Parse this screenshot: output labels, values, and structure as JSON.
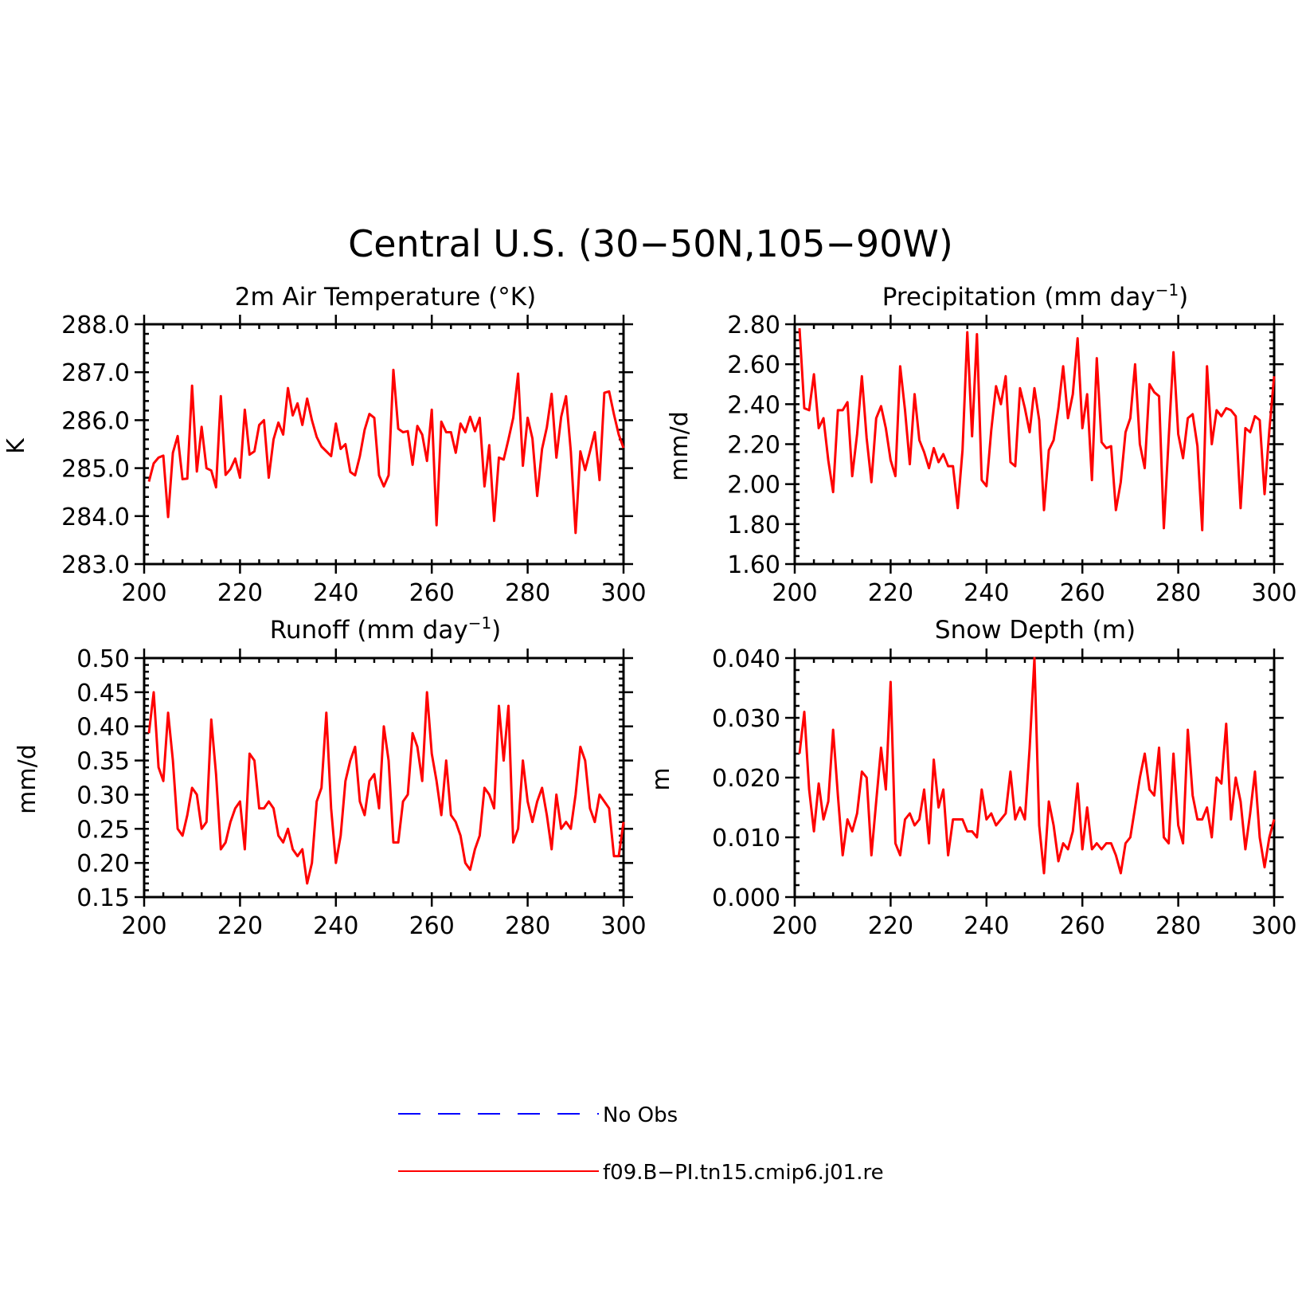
{
  "figure_title": "Central U.S. (30−50N,105−90W)",
  "legend": {
    "entries": [
      {
        "label": "No Obs",
        "color": "#0000ff",
        "dashed": true
      },
      {
        "label": "f09.B−PI.tn15.cmip6.j01.re",
        "color": "#ff0000",
        "dashed": false
      }
    ]
  },
  "chart_data": [
    {
      "type": "line",
      "title": "2m Air Temperature (°K)",
      "ylabel": "K",
      "xlim": [
        200,
        300
      ],
      "ylim": [
        283.0,
        288.0
      ],
      "xticks": [
        200,
        220,
        240,
        260,
        280,
        300
      ],
      "yticks": [
        "283.0",
        "284.0",
        "285.0",
        "286.0",
        "287.0",
        "288.0"
      ],
      "series": [
        {
          "color": "#ff0000",
          "x_start": 201,
          "values": [
            284.72,
            285.1,
            285.22,
            285.26,
            283.98,
            285.32,
            285.67,
            284.77,
            284.78,
            286.72,
            284.93,
            285.86,
            285.0,
            284.95,
            284.6,
            286.5,
            284.86,
            284.98,
            285.2,
            284.8,
            286.22,
            285.28,
            285.35,
            285.9,
            286.0,
            284.8,
            285.6,
            285.95,
            285.7,
            286.67,
            286.1,
            286.35,
            285.9,
            286.45,
            286.0,
            285.65,
            285.45,
            285.35,
            285.25,
            285.93,
            285.4,
            285.5,
            284.92,
            284.85,
            285.25,
            285.8,
            286.13,
            286.05,
            284.85,
            284.62,
            284.85,
            287.05,
            285.82,
            285.75,
            285.77,
            285.07,
            285.88,
            285.7,
            285.15,
            286.22,
            283.81,
            285.97,
            285.75,
            285.75,
            285.32,
            285.93,
            285.75,
            286.07,
            285.77,
            286.05,
            284.62,
            285.48,
            283.9,
            285.22,
            285.18,
            285.6,
            286.05,
            286.97,
            285.05,
            286.05,
            285.62,
            284.42,
            285.4,
            285.85,
            286.55,
            285.22,
            286.07,
            286.5,
            285.35,
            283.65,
            285.35,
            284.96,
            285.35,
            285.75,
            284.75,
            286.57,
            286.6,
            286.12,
            285.7,
            285.42
          ]
        }
      ]
    },
    {
      "type": "line",
      "title": "Precipitation (mm day",
      "title_sup": "−1",
      "title_end": ")",
      "ylabel": "mm/d",
      "xlim": [
        200,
        300
      ],
      "ylim": [
        1.6,
        2.8
      ],
      "xticks": [
        200,
        220,
        240,
        260,
        280,
        300
      ],
      "yticks": [
        "1.60",
        "1.80",
        "2.00",
        "2.20",
        "2.40",
        "2.60",
        "2.80"
      ],
      "series": [
        {
          "color": "#ff0000",
          "x_start": 201,
          "values": [
            2.78,
            2.38,
            2.37,
            2.55,
            2.28,
            2.33,
            2.12,
            1.96,
            2.37,
            2.37,
            2.41,
            2.04,
            2.25,
            2.54,
            2.23,
            2.01,
            2.33,
            2.39,
            2.28,
            2.12,
            2.04,
            2.59,
            2.37,
            2.1,
            2.45,
            2.22,
            2.16,
            2.08,
            2.18,
            2.11,
            2.15,
            2.09,
            2.09,
            1.88,
            2.17,
            2.76,
            2.24,
            2.75,
            2.02,
            1.99,
            2.27,
            2.49,
            2.4,
            2.54,
            2.11,
            2.09,
            2.48,
            2.38,
            2.26,
            2.48,
            2.32,
            1.87,
            2.17,
            2.22,
            2.38,
            2.59,
            2.33,
            2.45,
            2.73,
            2.28,
            2.45,
            2.02,
            2.63,
            2.21,
            2.18,
            2.19,
            1.87,
            2.01,
            2.26,
            2.33,
            2.6,
            2.2,
            2.08,
            2.5,
            2.46,
            2.44,
            1.78,
            2.23,
            2.66,
            2.25,
            2.13,
            2.33,
            2.35,
            2.19,
            1.77,
            2.59,
            2.2,
            2.37,
            2.34,
            2.38,
            2.37,
            2.34,
            1.88,
            2.28,
            2.26,
            2.34,
            2.32,
            1.95,
            2.27,
            2.54
          ]
        }
      ]
    },
    {
      "type": "line",
      "title": "Runoff (mm day",
      "title_sup": "−1",
      "title_end": ")",
      "ylabel": "mm/d",
      "xlim": [
        200,
        300
      ],
      "ylim": [
        0.15,
        0.5
      ],
      "xticks": [
        200,
        220,
        240,
        260,
        280,
        300
      ],
      "yticks": [
        "0.15",
        "0.20",
        "0.25",
        "0.30",
        "0.35",
        "0.40",
        "0.45",
        "0.50"
      ],
      "series": [
        {
          "color": "#ff0000",
          "x_start": 201,
          "values": [
            0.39,
            0.45,
            0.34,
            0.32,
            0.42,
            0.35,
            0.25,
            0.24,
            0.27,
            0.31,
            0.3,
            0.25,
            0.26,
            0.41,
            0.33,
            0.22,
            0.23,
            0.26,
            0.28,
            0.29,
            0.22,
            0.36,
            0.35,
            0.28,
            0.28,
            0.29,
            0.28,
            0.24,
            0.23,
            0.25,
            0.22,
            0.21,
            0.22,
            0.17,
            0.2,
            0.29,
            0.31,
            0.42,
            0.28,
            0.2,
            0.24,
            0.32,
            0.35,
            0.37,
            0.29,
            0.27,
            0.32,
            0.33,
            0.28,
            0.4,
            0.35,
            0.23,
            0.23,
            0.29,
            0.3,
            0.39,
            0.37,
            0.32,
            0.45,
            0.36,
            0.32,
            0.27,
            0.35,
            0.27,
            0.26,
            0.24,
            0.2,
            0.19,
            0.22,
            0.24,
            0.31,
            0.3,
            0.28,
            0.43,
            0.35,
            0.43,
            0.23,
            0.25,
            0.35,
            0.29,
            0.26,
            0.29,
            0.31,
            0.27,
            0.22,
            0.3,
            0.25,
            0.26,
            0.25,
            0.3,
            0.37,
            0.35,
            0.28,
            0.26,
            0.3,
            0.29,
            0.28,
            0.21,
            0.21,
            0.26
          ]
        }
      ]
    },
    {
      "type": "line",
      "title": "Snow Depth (m)",
      "ylabel": "m",
      "xlim": [
        200,
        300
      ],
      "ylim": [
        0.0,
        0.04
      ],
      "xticks": [
        200,
        220,
        240,
        260,
        280,
        300
      ],
      "yticks": [
        "0.000",
        "0.010",
        "0.020",
        "0.030",
        "0.040"
      ],
      "series": [
        {
          "color": "#ff0000",
          "x_start": 201,
          "values": [
            0.024,
            0.031,
            0.018,
            0.011,
            0.019,
            0.013,
            0.016,
            0.028,
            0.017,
            0.007,
            0.013,
            0.011,
            0.014,
            0.021,
            0.02,
            0.007,
            0.016,
            0.025,
            0.018,
            0.036,
            0.009,
            0.007,
            0.013,
            0.014,
            0.012,
            0.013,
            0.018,
            0.009,
            0.023,
            0.015,
            0.018,
            0.007,
            0.013,
            0.013,
            0.013,
            0.011,
            0.011,
            0.01,
            0.018,
            0.013,
            0.014,
            0.012,
            0.013,
            0.014,
            0.021,
            0.013,
            0.015,
            0.013,
            0.025,
            0.04,
            0.012,
            0.004,
            0.016,
            0.012,
            0.006,
            0.009,
            0.008,
            0.011,
            0.019,
            0.008,
            0.015,
            0.008,
            0.009,
            0.008,
            0.009,
            0.009,
            0.007,
            0.004,
            0.009,
            0.01,
            0.015,
            0.02,
            0.024,
            0.018,
            0.017,
            0.025,
            0.01,
            0.009,
            0.024,
            0.012,
            0.009,
            0.028,
            0.017,
            0.013,
            0.013,
            0.015,
            0.01,
            0.02,
            0.019,
            0.029,
            0.013,
            0.02,
            0.016,
            0.008,
            0.014,
            0.021,
            0.01,
            0.005,
            0.01,
            0.013
          ]
        }
      ]
    }
  ]
}
